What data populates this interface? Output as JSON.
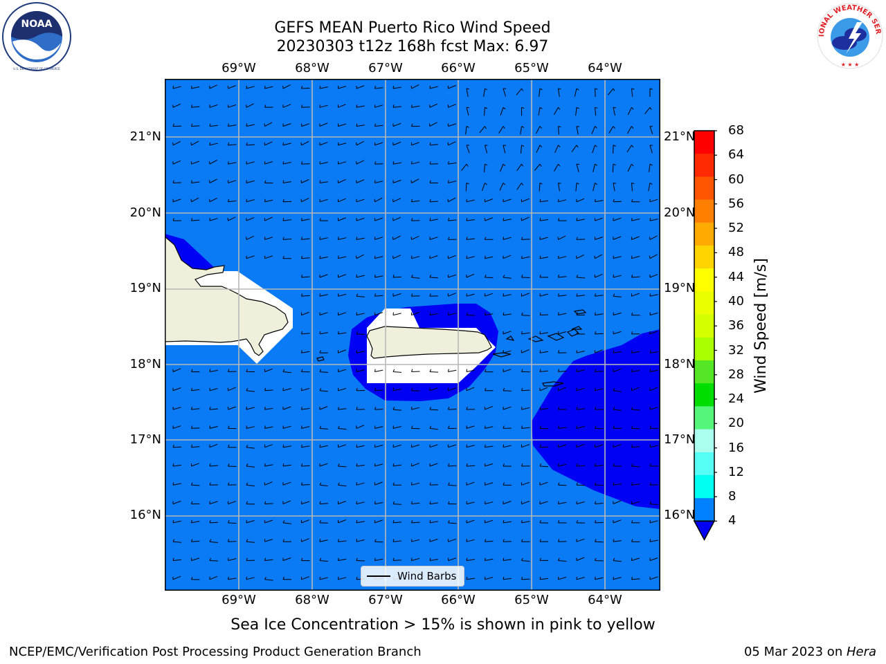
{
  "header": {
    "title_line1": "GEFS MEAN Puerto Rico Wind Speed",
    "title_line2": "20230303 t12z 168h fcst   Max: 6.97"
  },
  "logos": {
    "left": "noaa-logo",
    "left_text": "NOAA",
    "left_ring_text": "NATIONAL OCEANIC AND ATMOSPHERIC ADMINISTRATION · U.S. DEPARTMENT OF COMMERCE",
    "right": "nws-logo",
    "right_ring_text": "NATIONAL WEATHER SERVICE"
  },
  "map": {
    "lon_ticks": [
      "69°W",
      "68°W",
      "67°W",
      "66°W",
      "65°W",
      "64°W"
    ],
    "lat_ticks": [
      "21°N",
      "20°N",
      "19°N",
      "18°N",
      "17°N",
      "16°N"
    ],
    "extent": {
      "lon": [
        -70.0,
        -63.25
      ],
      "lat": [
        15.0,
        21.75
      ]
    },
    "ocean_color": "#0a7af5",
    "low_wind_color": "#0000f5",
    "land_color": "#efefdc",
    "legend_label": "Wind Barbs",
    "prevailing_wind": "easterly"
  },
  "colorbar": {
    "label": "Wind Speed [m/s]",
    "ticks": [
      "68",
      "64",
      "60",
      "56",
      "52",
      "48",
      "44",
      "40",
      "36",
      "32",
      "28",
      "24",
      "20",
      "16",
      "12",
      "8",
      "4"
    ],
    "colors": [
      "#ff0000",
      "#ff2a00",
      "#ff5500",
      "#ff8000",
      "#ffaa00",
      "#ffd400",
      "#ffff00",
      "#eaff00",
      "#d4ff00",
      "#aaff00",
      "#55e625",
      "#00dd00",
      "#55f57a",
      "#aaffef",
      "#55fff5",
      "#00fff0",
      "#0080ff"
    ],
    "under_color": "#0000f5"
  },
  "caption": "Sea Ice Concentration > 15% is shown in pink to yellow",
  "footer": {
    "left": "NCEP/EMC/Verification Post Processing Product Generation Branch",
    "date": "05 Mar 2023 on ",
    "machine": "Hera"
  }
}
